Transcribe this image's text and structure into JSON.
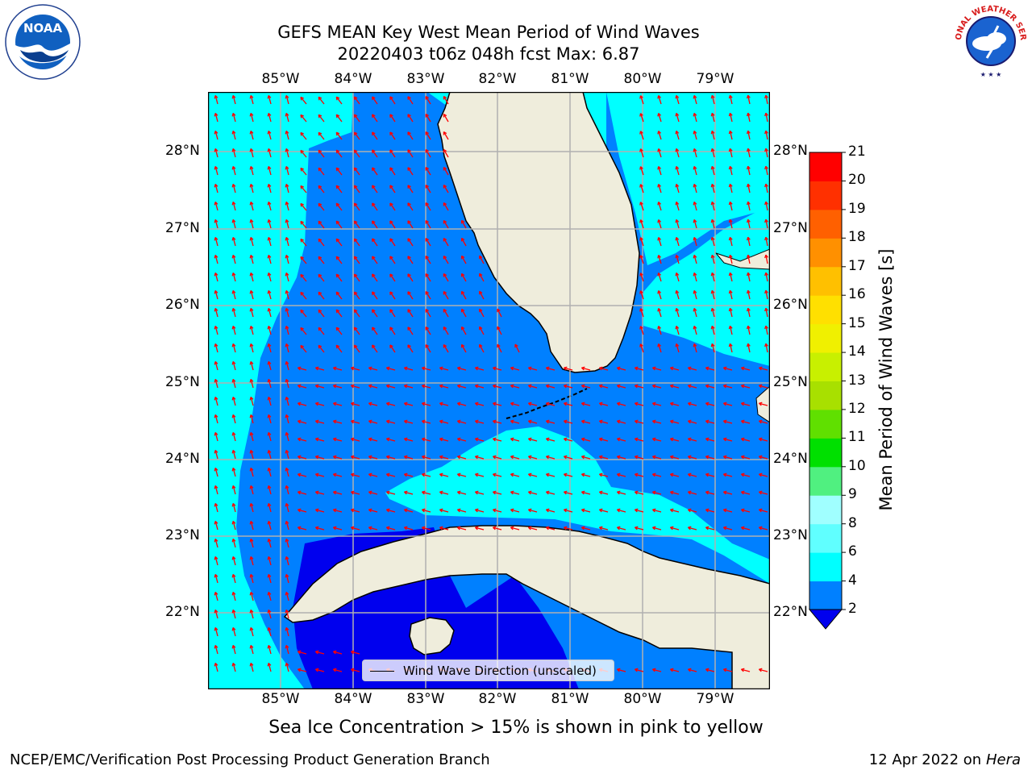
{
  "title": {
    "line1": "GEFS MEAN Key West Mean Period of Wind Waves",
    "line2": "20220403 t06z 048h fcst   Max: 6.87"
  },
  "map": {
    "lon_labels": [
      "85°W",
      "84°W",
      "83°W",
      "82°W",
      "81°W",
      "80°W",
      "79°W"
    ],
    "lat_labels": [
      "28°N",
      "27°N",
      "26°N",
      "25°N",
      "24°N",
      "23°N",
      "22°N"
    ],
    "region": "Key West / Florida Straits",
    "legend_label": "Wind Wave Direction (unscaled)"
  },
  "colorbar": {
    "label": "Mean Period of Wind Waves [s]",
    "ticks": [
      "2",
      "4",
      "6",
      "8",
      "9",
      "10",
      "11",
      "12",
      "13",
      "14",
      "15",
      "16",
      "17",
      "18",
      "19",
      "20",
      "21"
    ],
    "colors": [
      "#0000ee",
      "#0080ff",
      "#00ffff",
      "#60ffff",
      "#a0ffff",
      "#50f080",
      "#00e000",
      "#60e000",
      "#a8e000",
      "#c8f000",
      "#f0f000",
      "#ffe000",
      "#ffc000",
      "#ff9000",
      "#ff6000",
      "#ff3000",
      "#ff0000"
    ]
  },
  "colors": {
    "land": "#efeddc",
    "arrow": "#ff0000",
    "grid": "#b0b0b0",
    "period_2_4": "#0080ff",
    "period_4_6": "#00ffff",
    "period_lt_2": "#0000ee"
  },
  "notes": {
    "ice": "Sea Ice Concentration > 15% is shown in pink to yellow"
  },
  "footer": {
    "left": "NCEP/EMC/Verification Post Processing Product Generation Branch",
    "date": "12 Apr 2022 on",
    "machine": "Hera"
  },
  "logos": {
    "left": "NOAA",
    "right": "NATIONAL WEATHER SERVICE"
  }
}
